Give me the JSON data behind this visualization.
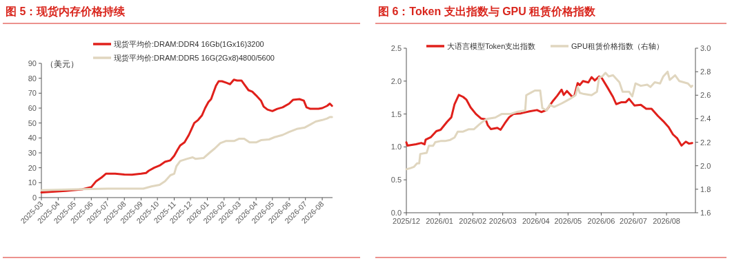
{
  "chart_data": [
    {
      "type": "line",
      "title": "图 5：现货内存价格持续",
      "ylabel": "（美元）",
      "legend": "top",
      "grid": false,
      "xlim": [
        "2025-03-01",
        "2026-08-20"
      ],
      "xticks": [
        "2025-03",
        "2025-04",
        "2025-05",
        "2025-06",
        "2025-07",
        "2025-08",
        "2025-09",
        "2025-10",
        "2025-11",
        "2025-12",
        "2026-01",
        "2026-02",
        "2026-03",
        "2026-04",
        "2026-05",
        "2026-06",
        "2026-07",
        "2026-08"
      ],
      "ylim": [
        0,
        90
      ],
      "yticks": [
        0,
        10,
        20,
        30,
        40,
        50,
        60,
        70,
        80,
        90
      ],
      "series": [
        {
          "name": "现货平均价:DRAM:DDR4 16Gb(1Gx16)3200",
          "color": "#e0201b",
          "x": [
            "2025-03-01",
            "2025-04-15",
            "2025-05-15",
            "2025-06-01",
            "2025-06-10",
            "2025-06-20",
            "2025-06-28",
            "2025-07-15",
            "2025-08-01",
            "2025-08-15",
            "2025-09-01",
            "2025-09-10",
            "2025-09-15",
            "2025-09-25",
            "2025-10-05",
            "2025-10-15",
            "2025-10-25",
            "2025-11-01",
            "2025-11-07",
            "2025-11-12",
            "2025-11-20",
            "2025-11-28",
            "2025-12-03",
            "2025-12-08",
            "2025-12-15",
            "2025-12-22",
            "2025-12-28",
            "2026-01-03",
            "2026-01-08",
            "2026-01-12",
            "2026-01-17",
            "2026-01-22",
            "2026-01-28",
            "2026-02-05",
            "2026-02-12",
            "2026-02-19",
            "2026-02-25",
            "2026-03-05",
            "2026-03-10",
            "2026-03-18",
            "2026-03-25",
            "2026-04-01",
            "2026-04-10",
            "2026-04-15",
            "2026-04-22",
            "2026-05-01",
            "2026-05-10",
            "2026-05-20",
            "2026-06-01",
            "2026-06-08",
            "2026-06-20",
            "2026-06-28",
            "2026-07-03",
            "2026-07-10",
            "2026-07-25",
            "2026-08-01",
            "2026-08-10",
            "2026-08-15",
            "2026-08-19"
          ],
          "values": [
            3.5,
            4.5,
            5.5,
            7,
            11,
            13.5,
            16,
            16,
            15.5,
            15.3,
            16,
            16.5,
            18,
            20,
            21.5,
            24,
            25,
            28,
            32,
            35,
            37,
            42,
            46,
            50,
            52,
            55,
            60,
            64,
            66,
            70,
            75,
            78,
            78,
            77,
            76,
            79,
            78.5,
            78.5,
            76,
            72,
            71,
            68.5,
            65,
            61,
            59,
            58,
            59.5,
            60.5,
            63,
            65.5,
            66,
            65,
            60.5,
            59.5,
            59.5,
            60,
            61.5,
            63,
            61.5
          ]
        },
        {
          "name": "现货平均价:DRAM:DDR5 16G(2Gx8)4800/5600",
          "color": "#e0d6bf",
          "x": [
            "2025-03-01",
            "2025-05-01",
            "2025-07-01",
            "2025-08-15",
            "2025-09-05",
            "2025-09-20",
            "2025-10-05",
            "2025-10-15",
            "2025-10-25",
            "2025-11-01",
            "2025-11-05",
            "2025-11-12",
            "2025-11-25",
            "2025-12-05",
            "2025-12-10",
            "2025-12-25",
            "2026-01-05",
            "2026-01-15",
            "2026-01-25",
            "2026-02-05",
            "2026-02-20",
            "2026-03-01",
            "2026-03-10",
            "2026-03-20",
            "2026-04-01",
            "2026-04-10",
            "2026-04-25",
            "2026-05-05",
            "2026-05-20",
            "2026-06-01",
            "2026-06-15",
            "2026-06-30",
            "2026-07-10",
            "2026-07-20",
            "2026-08-01",
            "2026-08-10",
            "2026-08-15",
            "2026-08-19"
          ],
          "values": [
            5,
            5.5,
            6,
            6,
            6,
            7.5,
            8.5,
            11,
            15,
            16,
            21,
            24.5,
            26,
            27,
            26,
            26.5,
            30,
            33,
            36.5,
            38,
            38,
            39.5,
            39.5,
            37,
            37,
            38.5,
            39,
            40.5,
            42,
            44,
            46,
            47,
            49,
            51,
            52,
            53,
            54,
            54
          ]
        }
      ]
    },
    {
      "type": "line",
      "title": "图 6：Token 支出指数与 GPU 租赁价格指数",
      "legend": "top",
      "grid": false,
      "xlim": [
        "2025-12-01",
        "2026-08-28"
      ],
      "xticks": [
        {
          "value": "2025-12",
          "label": "2025/12"
        },
        {
          "value": "2026-01",
          "label": "2026/01"
        },
        {
          "value": "2026-02",
          "label": "2026/02"
        },
        {
          "value": "2026-03",
          "label": "2026/03"
        },
        {
          "value": "2026-04",
          "label": "2026/04"
        },
        {
          "value": "2026-05",
          "label": "2026/05"
        },
        {
          "value": "2026-06",
          "label": "2026/06"
        },
        {
          "value": "2026-07",
          "label": "2026/07"
        },
        {
          "value": "2026-08",
          "label": "2026/08"
        }
      ],
      "ylim": [
        0,
        2.5
      ],
      "yticks": [
        {
          "value": 0,
          "label": "0.0"
        },
        {
          "value": 0.5,
          "label": "0.5"
        },
        {
          "value": 1,
          "label": "1.0"
        },
        {
          "value": 1.5,
          "label": "1.5"
        },
        {
          "value": 2,
          "label": "2.0"
        },
        {
          "value": 2.5,
          "label": "2.5"
        }
      ],
      "y2lim": [
        1.6,
        3.0
      ],
      "y2ticks": [
        {
          "value": 1.6,
          "label": "1.6"
        },
        {
          "value": 1.8,
          "label": "1.8"
        },
        {
          "value": 2.0,
          "label": "2.0"
        },
        {
          "value": 2.2,
          "label": "2.2"
        },
        {
          "value": 2.4,
          "label": "2.4"
        },
        {
          "value": 2.6,
          "label": "2.6"
        },
        {
          "value": 2.8,
          "label": "2.8"
        },
        {
          "value": 3.0,
          "label": "3.0"
        }
      ],
      "series": [
        {
          "name": "大语言模型Token支出指数",
          "color": "#e0201b",
          "x": [
            "2025-12-01",
            "2025-12-02",
            "2025-12-10",
            "2025-12-15",
            "2025-12-18",
            "2025-12-19",
            "2025-12-24",
            "2025-12-29",
            "2026-01-02",
            "2026-01-08",
            "2026-01-12",
            "2026-01-15",
            "2026-01-17",
            "2026-01-19",
            "2026-01-23",
            "2026-01-26",
            "2026-01-30",
            "2026-02-04",
            "2026-02-09",
            "2026-02-13",
            "2026-02-15",
            "2026-02-18",
            "2026-02-24",
            "2026-02-27",
            "2026-03-03",
            "2026-03-07",
            "2026-03-11",
            "2026-03-18",
            "2026-03-26",
            "2026-04-02",
            "2026-04-06",
            "2026-04-11",
            "2026-04-17",
            "2026-04-21",
            "2026-04-25",
            "2026-04-27",
            "2026-04-30",
            "2026-05-05",
            "2026-05-07",
            "2026-05-10",
            "2026-05-12",
            "2026-05-15",
            "2026-05-20",
            "2026-05-23",
            "2026-05-26",
            "2026-05-30",
            "2026-06-01",
            "2026-06-07",
            "2026-06-12",
            "2026-06-15",
            "2026-06-20",
            "2026-06-24",
            "2026-06-27",
            "2026-07-02",
            "2026-07-08",
            "2026-07-13",
            "2026-07-18",
            "2026-07-24",
            "2026-07-29",
            "2026-08-03",
            "2026-08-07",
            "2026-08-11",
            "2026-08-15",
            "2026-08-19",
            "2026-08-22",
            "2026-08-25"
          ],
          "values": [
            1.07,
            1.02,
            1.04,
            1.06,
            1.04,
            1.11,
            1.15,
            1.24,
            1.26,
            1.38,
            1.45,
            1.65,
            1.72,
            1.79,
            1.76,
            1.72,
            1.6,
            1.5,
            1.43,
            1.42,
            1.33,
            1.27,
            1.29,
            1.26,
            1.36,
            1.45,
            1.5,
            1.51,
            1.54,
            1.56,
            1.53,
            1.56,
            1.7,
            1.78,
            1.87,
            1.79,
            1.85,
            1.76,
            1.78,
            1.97,
            1.94,
            2.0,
            1.98,
            2.06,
            2.01,
            2.07,
            2.06,
            1.9,
            1.76,
            1.65,
            1.68,
            1.68,
            1.73,
            1.63,
            1.64,
            1.58,
            1.58,
            1.47,
            1.39,
            1.3,
            1.19,
            1.13,
            1.02,
            1.08,
            1.05,
            1.06
          ]
        },
        {
          "name": "GPU租赁价格指数（右轴）",
          "color": "#e0d6bf",
          "axis": "y2",
          "x": [
            "2025-12-01",
            "2025-12-05",
            "2025-12-08",
            "2025-12-11",
            "2025-12-13",
            "2025-12-14",
            "2025-12-20",
            "2025-12-22",
            "2025-12-26",
            "2025-12-28",
            "2026-01-02",
            "2026-01-06",
            "2026-01-11",
            "2026-01-15",
            "2026-01-18",
            "2026-01-23",
            "2026-01-28",
            "2026-02-02",
            "2026-02-07",
            "2026-02-11",
            "2026-02-15",
            "2026-02-22",
            "2026-02-28",
            "2026-03-08",
            "2026-03-15",
            "2026-03-22",
            "2026-03-23",
            "2026-03-27",
            "2026-03-31",
            "2026-04-05",
            "2026-04-07",
            "2026-04-11",
            "2026-04-14",
            "2026-04-18",
            "2026-04-25",
            "2026-04-29",
            "2026-05-03",
            "2026-05-08",
            "2026-05-10",
            "2026-05-12",
            "2026-05-16",
            "2026-05-23",
            "2026-05-28",
            "2026-05-30",
            "2026-06-02",
            "2026-06-05",
            "2026-06-08",
            "2026-06-12",
            "2026-06-18",
            "2026-06-21",
            "2026-06-27",
            "2026-06-30",
            "2026-07-03",
            "2026-07-08",
            "2026-07-14",
            "2026-07-17",
            "2026-07-21",
            "2026-07-26",
            "2026-07-29",
            "2026-08-02",
            "2026-08-04",
            "2026-08-09",
            "2026-08-13",
            "2026-08-17",
            "2026-08-21",
            "2026-08-24",
            "2026-08-25"
          ],
          "values": [
            1.97,
            1.98,
            1.99,
            2.02,
            2.02,
            2.1,
            2.11,
            2.17,
            2.17,
            2.2,
            2.21,
            2.21,
            2.22,
            2.24,
            2.29,
            2.29,
            2.31,
            2.31,
            2.35,
            2.38,
            2.4,
            2.41,
            2.44,
            2.44,
            2.46,
            2.47,
            2.6,
            2.62,
            2.64,
            2.64,
            2.49,
            2.47,
            2.52,
            2.5,
            2.53,
            2.55,
            2.57,
            2.6,
            2.67,
            2.62,
            2.61,
            2.6,
            2.63,
            2.75,
            2.76,
            2.79,
            2.76,
            2.77,
            2.71,
            2.63,
            2.63,
            2.59,
            2.7,
            2.68,
            2.69,
            2.67,
            2.71,
            2.7,
            2.76,
            2.8,
            2.73,
            2.77,
            2.72,
            2.71,
            2.7,
            2.67,
            2.68
          ]
        }
      ]
    }
  ]
}
